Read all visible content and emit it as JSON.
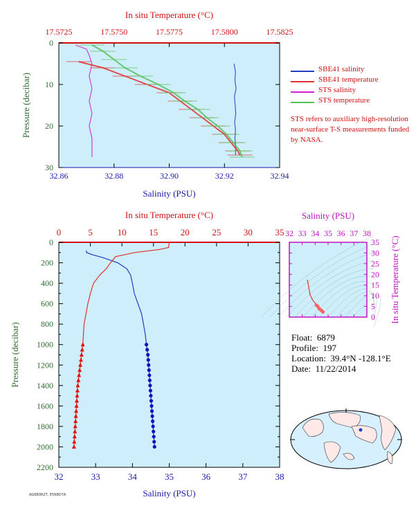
{
  "chart_data": [
    {
      "type": "line",
      "panel": "near-surface profile",
      "title": "In situ Temperature (°C)",
      "xlabel": "Salinity (PSU)",
      "ylabel": "Pressure (decibar)",
      "x_bottom": {
        "label": "Salinity (PSU)",
        "range": [
          32.86,
          32.94
        ],
        "ticks": [
          "32.86",
          "32.88",
          "32.90",
          "32.92",
          "32.94"
        ]
      },
      "x_top": {
        "label": "In situ Temperature (°C)",
        "range": [
          17.5725,
          17.5825
        ],
        "ticks": [
          "17.5725",
          "17.5750",
          "17.5775",
          "17.5800",
          "17.5825"
        ]
      },
      "y": {
        "label": "Pressure (decibar)",
        "range": [
          0,
          30
        ],
        "reversed": true,
        "ticks": [
          "0",
          "10",
          "20",
          "30"
        ]
      },
      "legend": [
        {
          "name": "SBE41 salinity",
          "color": "#1f3fbf"
        },
        {
          "name": "SBE41 temperature",
          "color": "#e03030"
        },
        {
          "name": "STS salinity",
          "color": "#d020d0"
        },
        {
          "name": "STS temperature",
          "color": "#55c055"
        }
      ],
      "series": [
        {
          "name": "SBE41 salinity",
          "axis": "salinity",
          "color": "#1f3fbf",
          "points": [
            [
              32.9235,
              5
            ],
            [
              32.924,
              7
            ],
            [
              32.9238,
              9
            ],
            [
              32.9242,
              11
            ],
            [
              32.9236,
              13
            ],
            [
              32.9239,
              15
            ],
            [
              32.9241,
              17
            ],
            [
              32.9237,
              19
            ],
            [
              32.924,
              21
            ],
            [
              32.9238,
              23
            ],
            [
              32.9241,
              25
            ],
            [
              32.924,
              27
            ]
          ]
        },
        {
          "name": "SBE41 temperature",
          "axis": "temperature",
          "color": "#e03030",
          "points": [
            [
              17.5734,
              4.5
            ],
            [
              17.5745,
              6
            ],
            [
              17.5755,
              8
            ],
            [
              17.5765,
              10
            ],
            [
              17.5775,
              12
            ],
            [
              17.578,
              14
            ],
            [
              17.5785,
              16
            ],
            [
              17.579,
              18
            ],
            [
              17.5795,
              20
            ],
            [
              17.58,
              22
            ],
            [
              17.5803,
              24
            ],
            [
              17.5806,
              26
            ],
            [
              17.5807,
              27
            ]
          ]
        },
        {
          "name": "STS salinity",
          "axis": "salinity",
          "color": "#d020d0",
          "points": [
            [
              32.866,
              0.5
            ],
            [
              32.87,
              1.5
            ],
            [
              32.871,
              3
            ],
            [
              32.872,
              5
            ],
            [
              32.871,
              8
            ],
            [
              32.872,
              11
            ],
            [
              32.871,
              14
            ],
            [
              32.872,
              17
            ],
            [
              32.871,
              20
            ],
            [
              32.872,
              23
            ],
            [
              32.872,
              26
            ],
            [
              32.872,
              27.5
            ]
          ]
        },
        {
          "name": "STS temperature",
          "axis": "temperature",
          "color": "#55c055",
          "points": [
            [
              17.574,
              0.5
            ],
            [
              17.5745,
              2
            ],
            [
              17.575,
              4
            ],
            [
              17.5755,
              6
            ],
            [
              17.5762,
              8
            ],
            [
              17.577,
              10
            ],
            [
              17.5777,
              12
            ],
            [
              17.5782,
              14
            ],
            [
              17.5788,
              16
            ],
            [
              17.5792,
              18
            ],
            [
              17.5797,
              20
            ],
            [
              17.5801,
              22
            ],
            [
              17.5804,
              24
            ],
            [
              17.5807,
              26
            ],
            [
              17.5808,
              27.5
            ]
          ]
        }
      ]
    },
    {
      "type": "line",
      "panel": "full-depth profile",
      "title": "In situ Temperature (°C)",
      "xlabel": "Salinity (PSU)",
      "ylabel": "Pressure (decibar)",
      "x_bottom": {
        "label": "Salinity (PSU)",
        "range": [
          32,
          38
        ],
        "ticks": [
          "32",
          "33",
          "34",
          "35",
          "36",
          "37",
          "38"
        ]
      },
      "x_top": {
        "label": "In situ Temperature (°C)",
        "range": [
          0,
          35
        ],
        "ticks": [
          "0",
          "5",
          "10",
          "15",
          "20",
          "25",
          "30",
          "35"
        ]
      },
      "y": {
        "label": "Pressure (decibar)",
        "range": [
          0,
          2200
        ],
        "reversed": true,
        "ticks": [
          "0",
          "200",
          "400",
          "600",
          "800",
          "1000",
          "1200",
          "1400",
          "1600",
          "1800",
          "2000",
          "2200"
        ]
      },
      "series": [
        {
          "name": "Salinity",
          "axis": "salinity",
          "color": "#1f3fbf",
          "line_points": [
            [
              32.75,
              80
            ],
            [
              32.75,
              100
            ],
            [
              32.9,
              120
            ],
            [
              33.2,
              150
            ],
            [
              33.6,
              200
            ],
            [
              33.85,
              260
            ],
            [
              33.95,
              320
            ],
            [
              34.0,
              400
            ],
            [
              34.05,
              500
            ],
            [
              34.15,
              600
            ],
            [
              34.25,
              700
            ],
            [
              34.3,
              800
            ],
            [
              34.35,
              900
            ],
            [
              34.38,
              1000
            ]
          ],
          "marker_points": [
            [
              34.38,
              1000
            ],
            [
              34.4,
              1050
            ],
            [
              34.42,
              1100
            ],
            [
              34.43,
              1150
            ],
            [
              34.44,
              1200
            ],
            [
              34.45,
              1250
            ],
            [
              34.46,
              1300
            ],
            [
              34.47,
              1350
            ],
            [
              34.48,
              1400
            ],
            [
              34.49,
              1450
            ],
            [
              34.5,
              1500
            ],
            [
              34.51,
              1550
            ],
            [
              34.52,
              1600
            ],
            [
              34.53,
              1650
            ],
            [
              34.54,
              1700
            ],
            [
              34.55,
              1750
            ],
            [
              34.56,
              1800
            ],
            [
              34.57,
              1850
            ],
            [
              34.58,
              1900
            ],
            [
              34.59,
              1950
            ],
            [
              34.6,
              2000
            ]
          ]
        },
        {
          "name": "Temperature",
          "axis": "temperature",
          "color": "#e03030",
          "line_points": [
            [
              17.5,
              0
            ],
            [
              17.4,
              50
            ],
            [
              16.0,
              70
            ],
            [
              12.0,
              100
            ],
            [
              9.0,
              140
            ],
            [
              8.2,
              200
            ],
            [
              7.5,
              260
            ],
            [
              6.5,
              320
            ],
            [
              5.5,
              400
            ],
            [
              5.0,
              500
            ],
            [
              4.6,
              600
            ],
            [
              4.3,
              700
            ],
            [
              4.0,
              800
            ],
            [
              3.9,
              900
            ],
            [
              3.8,
              1000
            ]
          ],
          "marker_points": [
            [
              3.8,
              1000
            ],
            [
              3.7,
              1050
            ],
            [
              3.6,
              1100
            ],
            [
              3.5,
              1150
            ],
            [
              3.4,
              1200
            ],
            [
              3.3,
              1250
            ],
            [
              3.2,
              1300
            ],
            [
              3.1,
              1350
            ],
            [
              3.0,
              1400
            ],
            [
              2.95,
              1450
            ],
            [
              2.9,
              1500
            ],
            [
              2.85,
              1550
            ],
            [
              2.8,
              1600
            ],
            [
              2.75,
              1650
            ],
            [
              2.7,
              1700
            ],
            [
              2.65,
              1750
            ],
            [
              2.6,
              1800
            ],
            [
              2.55,
              1850
            ],
            [
              2.5,
              1900
            ],
            [
              2.45,
              1950
            ],
            [
              2.4,
              2000
            ]
          ]
        }
      ]
    },
    {
      "type": "line",
      "panel": "T-S diagram",
      "title": "Salinity (PSU)",
      "xlabel": "Salinity (PSU)",
      "ylabel": "In situ Temperature (°C)",
      "x": {
        "range": [
          32,
          38
        ],
        "ticks": [
          "32",
          "33",
          "34",
          "35",
          "36",
          "37",
          "38"
        ]
      },
      "y": {
        "range": [
          0,
          35
        ],
        "ticks": [
          "0",
          "5",
          "10",
          "15",
          "20",
          "25",
          "30",
          "35"
        ]
      },
      "series": [
        {
          "name": "T-S curve",
          "color": "#e03030",
          "points": [
            [
              33.4,
              17.5
            ],
            [
              33.5,
              14
            ],
            [
              33.6,
              10.5
            ],
            [
              33.8,
              8
            ],
            [
              34.0,
              6.5
            ],
            [
              34.1,
              5.5
            ],
            [
              34.2,
              5
            ],
            [
              34.3,
              4
            ],
            [
              34.4,
              3.5
            ],
            [
              34.5,
              3
            ],
            [
              34.6,
              2.4
            ]
          ]
        }
      ]
    }
  ],
  "info": {
    "float_label": "Float:",
    "float_value": "6879",
    "profile_label": "Profile:",
    "profile_value": "197",
    "location_label": "Location:",
    "location_value": "39.4°N  -128.1°E",
    "date_label": "Date:",
    "date_value": "11/22/2014"
  },
  "note": "STS refers to auxiliary high-resolution near-surface T-S measurements funded by NASA.",
  "footer": "AG6B0R2T, E56BD7A",
  "colors": {
    "plot_bg": "#cdeefa",
    "salinity_axis": "#1a1aa6",
    "temperature_axis": "#d01010",
    "pressure_axis": "#2f6b2f",
    "ts_axis": "#c012c0"
  }
}
